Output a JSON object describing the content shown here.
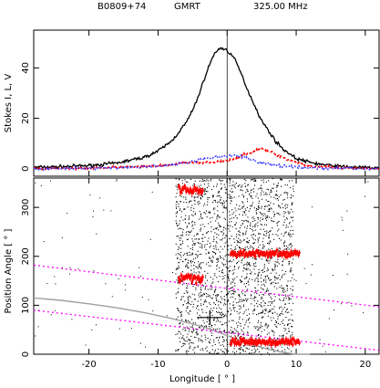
{
  "header": {
    "source": "B0809+74",
    "telescope": "GMRT",
    "frequency": "325.00 MHz"
  },
  "chart_data": [
    {
      "type": "line",
      "panel": "top",
      "ylabel": "Stokes I, L, V",
      "xlim": [
        -28,
        22
      ],
      "ylim": [
        -3,
        55
      ],
      "yticks": [
        0,
        20,
        40
      ],
      "xticks": [
        -20,
        -10,
        0,
        10,
        20
      ],
      "series": [
        {
          "key": "I",
          "color": "#000000",
          "x": [
            -28,
            -24,
            -20,
            -16,
            -12,
            -10,
            -8,
            -6,
            -5,
            -4,
            -3,
            -2,
            -1,
            0,
            1,
            2,
            3,
            4,
            5,
            6,
            7,
            8,
            9,
            10,
            12,
            14,
            16,
            18,
            20,
            22
          ],
          "values": [
            0.5,
            0.8,
            1.2,
            2.2,
            4.5,
            7,
            11,
            18,
            23,
            30,
            38,
            45,
            48,
            47,
            44,
            38,
            31,
            25,
            19,
            15,
            11,
            8,
            6,
            4,
            2.5,
            1.5,
            1,
            0.6,
            0.4,
            0.3
          ]
        },
        {
          "key": "L",
          "color": "#ff0000",
          "x": [
            -28,
            -20,
            -12,
            -8,
            -6,
            -4,
            -2,
            0,
            2,
            4,
            5,
            6,
            8,
            10,
            12,
            16,
            22
          ],
          "values": [
            0,
            0.3,
            0.8,
            1.5,
            2.5,
            2.2,
            2.5,
            3,
            5,
            7,
            8,
            7,
            4.5,
            2.5,
            1,
            0.3,
            0
          ]
        },
        {
          "key": "V",
          "color": "#3030ff",
          "x": [
            -28,
            -20,
            -12,
            -8,
            -6,
            -4,
            -2,
            0,
            1,
            2,
            3,
            4,
            6,
            8,
            10,
            14,
            22
          ],
          "values": [
            0,
            0.2,
            0.6,
            1.5,
            2.5,
            3.5,
            4.5,
            5,
            5.5,
            5,
            4,
            3,
            2,
            1,
            0.5,
            0.2,
            0
          ]
        }
      ]
    },
    {
      "type": "scatter",
      "panel": "bottom",
      "ylabel": "Position Angle [ ° ]",
      "xlabel": "Longitude  [ ° ]",
      "xlim": [
        -28,
        22
      ],
      "ylim": [
        0,
        360
      ],
      "yticks": [
        0,
        100,
        200,
        300
      ],
      "xticks": [
        -20,
        -10,
        0,
        10,
        20
      ],
      "pa_clusters": [
        {
          "x": [
            -7,
            -3.5
          ],
          "center": 335,
          "spread": 12
        },
        {
          "x": [
            -7,
            -3.5
          ],
          "center": 155,
          "spread": 12
        },
        {
          "x": [
            0.5,
            10.5
          ],
          "center": 205,
          "spread": 8
        },
        {
          "x": [
            0.5,
            10.5
          ],
          "center": 25,
          "spread": 8
        }
      ],
      "rvm_fit": {
        "color": "#a0a0a0",
        "x": [
          -28,
          -24,
          -20,
          -16,
          -12,
          -8,
          -4,
          -2,
          0,
          2,
          4,
          6,
          8,
          10,
          12
        ],
        "values": [
          115,
          110,
          103,
          95,
          85,
          73,
          58,
          49,
          38,
          28,
          18,
          10,
          4,
          0,
          0
        ]
      },
      "dotted_lines": [
        {
          "color": "#ff00ff",
          "x": [
            -28,
            22
          ],
          "values": [
            182,
            97
          ]
        },
        {
          "color": "#ff00ff",
          "x": [
            -28,
            22
          ],
          "values": [
            90,
            8
          ]
        }
      ],
      "cross": {
        "x": -2.5,
        "y": 75
      }
    }
  ]
}
